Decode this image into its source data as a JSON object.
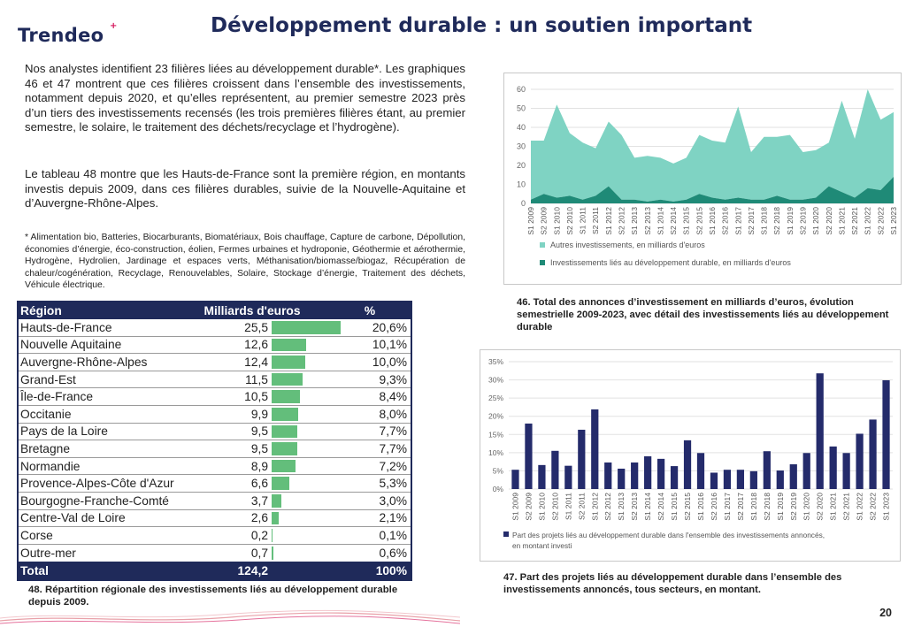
{
  "header": {
    "logo": "Trendeo",
    "logo_mark": "+",
    "title": "Développement durable : un soutien important"
  },
  "text": {
    "para1": "Nos analystes identifient 23 filières liées au développement durable*. Les graphiques 46 et 47 montrent que ces filières croissent dans l’ensemble des investissements, notamment depuis 2020, et qu’elles représentent, au premier semestre 2023 près d’un tiers des investissements recensés (les trois premières filières étant, au premier semestre, le solaire, le traitement des déchets/recyclage et l’hydrogène).",
    "para2": "Le tableau 48 montre que les Hauts-de-France sont la première région, en montants investis depuis 2009, dans ces filières durables, suivie de la Nouvelle-Aquitaine et d’Auvergne-Rhône-Alpes.",
    "footnote": "* Alimentation bio, Batteries, Biocarburants, Biomatériaux, Bois chauffage, Capture de carbone, Dépollution, économies d’énergie, éco-construction, éolien, Fermes urbaines et hydroponie, Géothermie et aérothermie, Hydrogène, Hydrolien, Jardinage et espaces verts, Méthanisation/biomasse/biogaz, Récupération de chaleur/cogénération, Recyclage, Renouvelables, Solaire, Stockage d’énergie, Traitement des déchets, Véhicule électrique."
  },
  "table": {
    "headers": {
      "region": "Région",
      "value": "Milliards d'euros",
      "pct": "%"
    },
    "rows": [
      {
        "region": "Hauts-de-France",
        "value": "25,5",
        "pct": "20,6%",
        "v": 25.5
      },
      {
        "region": "Nouvelle Aquitaine",
        "value": "12,6",
        "pct": "10,1%",
        "v": 12.6
      },
      {
        "region": "Auvergne-Rhône-Alpes",
        "value": "12,4",
        "pct": "10,0%",
        "v": 12.4
      },
      {
        "region": "Grand-Est",
        "value": "11,5",
        "pct": "9,3%",
        "v": 11.5
      },
      {
        "region": "Île-de-France",
        "value": "10,5",
        "pct": "8,4%",
        "v": 10.5
      },
      {
        "region": "Occitanie",
        "value": "9,9",
        "pct": "8,0%",
        "v": 9.9
      },
      {
        "region": "Pays de la Loire",
        "value": "9,5",
        "pct": "7,7%",
        "v": 9.5
      },
      {
        "region": "Bretagne",
        "value": "9,5",
        "pct": "7,7%",
        "v": 9.5
      },
      {
        "region": "Normandie",
        "value": "8,9",
        "pct": "7,2%",
        "v": 8.9
      },
      {
        "region": "Provence-Alpes-Côte d'Azur",
        "value": "6,6",
        "pct": "5,3%",
        "v": 6.6
      },
      {
        "region": "Bourgogne-Franche-Comté",
        "value": "3,7",
        "pct": "3,0%",
        "v": 3.7
      },
      {
        "region": "Centre-Val de Loire",
        "value": "2,6",
        "pct": "2,1%",
        "v": 2.6
      },
      {
        "region": "Corse",
        "value": "0,2",
        "pct": "0,1%",
        "v": 0.2
      },
      {
        "region": "Outre-mer",
        "value": "0,7",
        "pct": "0,6%",
        "v": 0.7
      }
    ],
    "total": {
      "region": "Total",
      "value": "124,2",
      "pct": "100%"
    },
    "bar_color": "#63be7b",
    "header_color": "#1f2a5a"
  },
  "captions": {
    "c46": "46. Total des annonces d’investissement en milliards d’euros, évolution semestrielle 2009-2023, avec détail des investissements liés au développement durable",
    "c47": "47. Part des projets liés au développement durable dans l’ensemble des investissements annoncés, tous secteurs, en montant.",
    "c48": "48. Répartition régionale des investissements liés au développement durable depuis 2009."
  },
  "page_number": "20",
  "chart_data": [
    {
      "id": "chart46",
      "type": "area",
      "x": [
        "S1 2009",
        "S2 2009",
        "S1 2010",
        "S2 2010",
        "S1 2011",
        "S2 2011",
        "S1 2012",
        "S2 2012",
        "S1 2013",
        "S2 2013",
        "S1 2014",
        "S2 2014",
        "S1 2015",
        "S2 2015",
        "S1 2016",
        "S2 2016",
        "S1 2017",
        "S2 2017",
        "S1 2018",
        "S2 2018",
        "S1 2019",
        "S2 2019",
        "S1 2020",
        "S2 2020",
        "S1 2021",
        "S2 2021",
        "S1 2022",
        "S2 2022",
        "S1 2023"
      ],
      "series": [
        {
          "name": "Autres investissements, en milliards d'euros",
          "color": "#7fd3c3",
          "values": [
            31,
            28,
            49,
            33,
            30,
            25,
            34,
            34,
            22,
            24,
            22,
            20,
            22,
            31,
            30,
            30,
            48,
            25,
            33,
            31,
            34,
            25,
            25,
            23,
            48,
            31,
            52,
            37,
            34
          ]
        },
        {
          "name": "Investissements liés au développement durable, en milliards d'euros",
          "color": "#1f8a77",
          "values": [
            2,
            5,
            3,
            4,
            2,
            4,
            9,
            2,
            2,
            1,
            2,
            1,
            2,
            5,
            3,
            2,
            3,
            2,
            2,
            4,
            2,
            2,
            3,
            9,
            6,
            3,
            8,
            7,
            14
          ]
        }
      ],
      "ylim": [
        0,
        60
      ],
      "yticks": [
        0,
        10,
        20,
        30,
        40,
        50,
        60
      ],
      "legend_position": "bottom",
      "grid": true
    },
    {
      "id": "chart47",
      "type": "bar",
      "categories": [
        "S1 2009",
        "S2 2009",
        "S1 2010",
        "S2 2010",
        "S1 2011",
        "S2 2011",
        "S1 2012",
        "S2 2012",
        "S1 2013",
        "S2 2013",
        "S1 2014",
        "S2 2014",
        "S1 2015",
        "S2 2015",
        "S1 2016",
        "S2 2016",
        "S1 2017",
        "S2 2017",
        "S1 2018",
        "S2 2018",
        "S1 2019",
        "S2 2019",
        "S1 2020",
        "S2 2020",
        "S1 2021",
        "S2 2021",
        "S1 2022",
        "S2 2022",
        "S1 2023"
      ],
      "series": [
        {
          "name": "Part des projets liés au développement durable dans l'ensemble des investissements annoncés, en montant investi",
          "color": "#242b6b",
          "values": [
            5.3,
            18,
            6.6,
            10.5,
            6.4,
            16.3,
            21.9,
            7.3,
            5.6,
            7.3,
            9,
            8.3,
            6.3,
            13.4,
            9.9,
            4.5,
            5.3,
            5.3,
            4.9,
            10.4,
            5.1,
            6.8,
            9.9,
            31.8,
            11.7,
            9.9,
            15.2,
            19.1,
            29.9
          ]
        }
      ],
      "ylim": [
        0,
        35
      ],
      "yticks": [
        "0%",
        "5%",
        "10%",
        "15%",
        "20%",
        "25%",
        "30%",
        "35%"
      ],
      "legend_position": "bottom",
      "grid": true
    }
  ]
}
